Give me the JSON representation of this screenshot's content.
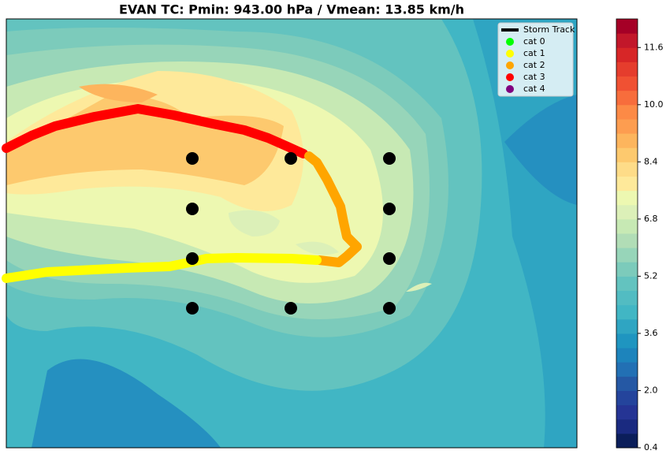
{
  "chart_data": {
    "type": "contour-map",
    "title": "EVAN TC: Pmin: 943.00 hPa / Vmean: 13.85 km/h",
    "legend": [
      {
        "name": "Storm Track",
        "color": "#000000"
      },
      {
        "name": "cat 0",
        "color": "#00ff00"
      },
      {
        "name": "cat 1",
        "color": "#ffff00"
      },
      {
        "name": "cat 2",
        "color": "#ffa500"
      },
      {
        "name": "cat 3",
        "color": "#ff0000"
      },
      {
        "name": "cat 4",
        "color": "#800080"
      }
    ],
    "colorbar": {
      "clim": [
        0.4,
        12.4
      ],
      "ticks": [
        0.4,
        {
          "value": 2,
          "label": "2.0"
        },
        3.6,
        5.2,
        6.8,
        8.4,
        {
          "value": 10,
          "label": "10.0"
        },
        11.6
      ],
      "colors": [
        "#0b1e5a",
        "#1a2a80",
        "#253494",
        "#24449c",
        "#2558a4",
        "#2270b4",
        "#1d84bc",
        "#1f95c0",
        "#2fa5c2",
        "#41b6c4",
        "#52bcc2",
        "#63c3bf",
        "#7ccbbb",
        "#97d5b9",
        "#b1ddb6",
        "#c7e9b4",
        "#dcf0b8",
        "#edf8b1",
        "#fee99a",
        "#fedc88",
        "#fdc96e",
        "#fdb55d",
        "#fd9d50",
        "#fc8a46",
        "#f76d3c",
        "#f05133",
        "#e53d2d",
        "#d72627",
        "#c2172a",
        "#a50026"
      ]
    }
  }
}
